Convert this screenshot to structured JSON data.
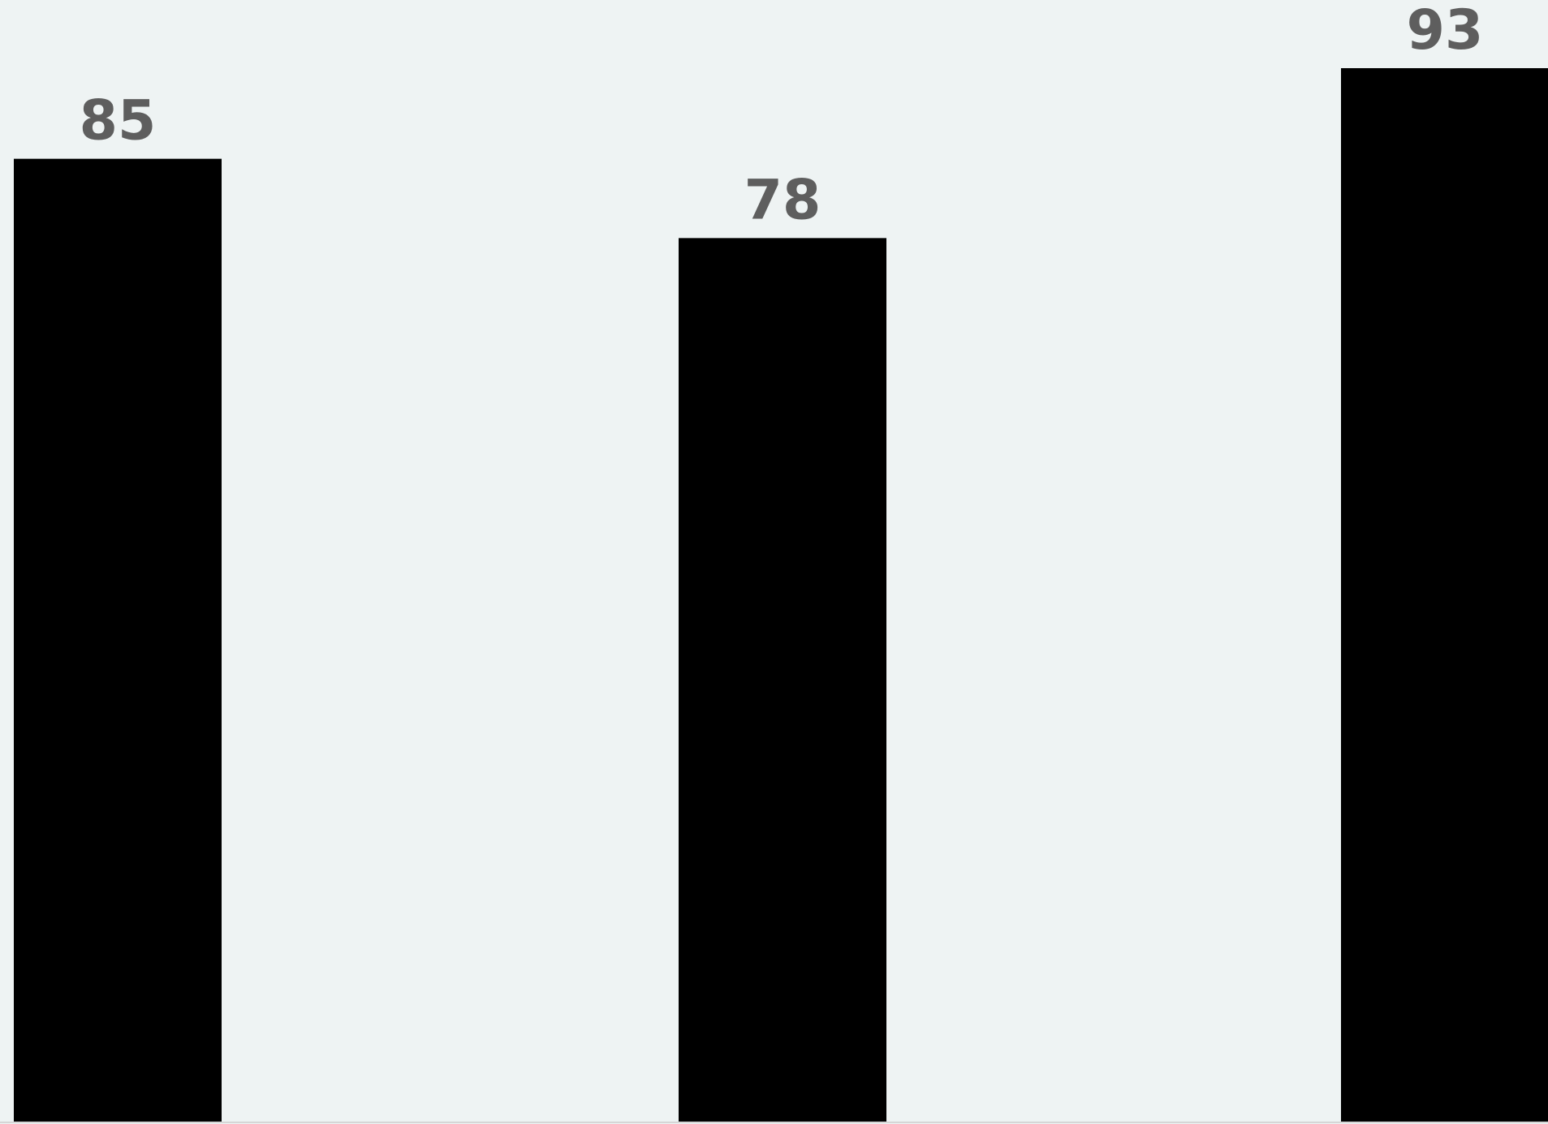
{
  "chart_data": {
    "type": "bar",
    "categories": [
      "",
      "",
      ""
    ],
    "values": [
      85,
      78,
      93
    ],
    "value_labels": [
      "85",
      "78",
      "93"
    ],
    "title": "",
    "xlabel": "",
    "ylabel": "",
    "ylim": [
      0,
      93
    ],
    "grid": false,
    "legend": "none",
    "colors": {
      "background": "#eef3f3",
      "bar": "#000000",
      "label": "#5e5e5e",
      "baseline": "#d6d6d6"
    }
  }
}
